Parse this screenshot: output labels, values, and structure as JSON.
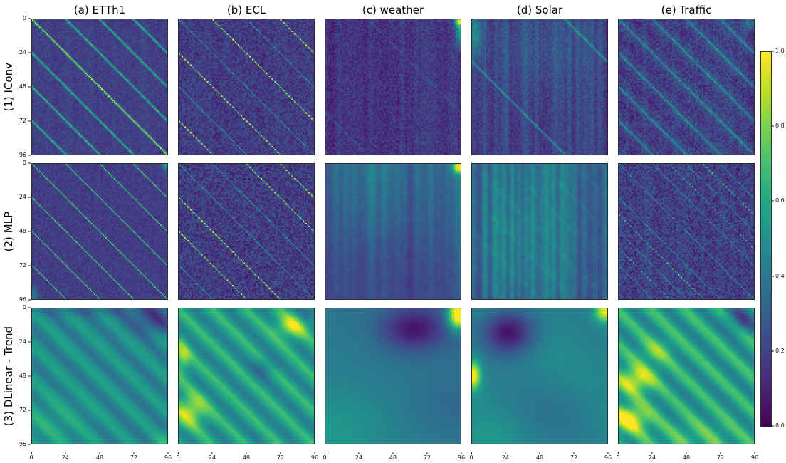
{
  "chart_data": {
    "type": "heatmap",
    "grid": {
      "rows": 3,
      "cols": 5
    },
    "col_titles": [
      "(a) ETTh1",
      "(b) ECL",
      "(c) weather",
      "(d) Solar",
      "(e) Traffic"
    ],
    "row_labels": [
      "(1) IConv",
      "(2) MLP",
      "(3) DLinear - Trend"
    ],
    "x_range": [
      0,
      96
    ],
    "y_range": [
      0,
      96
    ],
    "xticks": [
      0,
      24,
      48,
      72,
      96
    ],
    "yticks": [
      0,
      24,
      48,
      72,
      96
    ],
    "value_range": [
      0.0,
      1.0
    ],
    "colorbar": {
      "min": 0.0,
      "max": 1.0,
      "ticks": [
        "1.0",
        "0.8",
        "0.6",
        "0.4",
        "0.2",
        "0.0"
      ],
      "colormap": "viridis"
    },
    "colormap_stops": [
      [
        0.0,
        "#440154"
      ],
      [
        0.1,
        "#482475"
      ],
      [
        0.2,
        "#414487"
      ],
      [
        0.3,
        "#355f8d"
      ],
      [
        0.4,
        "#2a788e"
      ],
      [
        0.5,
        "#21918c"
      ],
      [
        0.6,
        "#22a884"
      ],
      [
        0.7,
        "#44bf70"
      ],
      [
        0.8,
        "#7ad151"
      ],
      [
        0.9,
        "#bddf26"
      ],
      [
        1.0,
        "#fde725"
      ]
    ],
    "panels": [
      {
        "dataset": "ETTh1",
        "model": "IConv",
        "seed": 11,
        "base": 0.19,
        "noise": 0.05,
        "streaks": {
          "amp": 0.04,
          "smooth": 2
        },
        "diag": [
          {
            "period": 24,
            "amp": 0.5,
            "jitter": 0.3,
            "wide": true
          },
          {
            "period": 96,
            "offset": 0,
            "amp": 0.25,
            "jitter": 0.2
          }
        ]
      },
      {
        "dataset": "ECL",
        "model": "IConv",
        "seed": 12,
        "base": 0.18,
        "noise": 0.09,
        "streaks": {
          "amp": 0.03,
          "smooth": 1
        },
        "diag": [
          {
            "period": 24,
            "amp": 0.33,
            "jitter": 0.5
          },
          {
            "period": 96,
            "offset": 72,
            "amp": 0.7,
            "jitter": 0.45,
            "dotted": true
          },
          {
            "period": 96,
            "offset": -72,
            "amp": 0.7,
            "jitter": 0.45,
            "dotted": true
          }
        ]
      },
      {
        "dataset": "weather",
        "model": "IConv",
        "seed": 13,
        "base": 0.16,
        "noise": 0.07,
        "streaks": {
          "amp": 0.05,
          "smooth": 1
        },
        "diag": [
          {
            "period": 96,
            "offset": 30,
            "amp": 0.1,
            "jitter": 0.5,
            "wide": true
          }
        ],
        "blobs": [
          {
            "x": 95,
            "y": 6,
            "sx": 2,
            "sy": 9,
            "a": 0.45
          },
          {
            "x": 94,
            "y": 1,
            "sx": 2,
            "sy": 2,
            "a": 0.5
          }
        ]
      },
      {
        "dataset": "Solar",
        "model": "IConv",
        "seed": 14,
        "base": 0.2,
        "noise": 0.06,
        "streaks": {
          "amp": 0.11,
          "smooth": 1
        },
        "diag": [
          {
            "period": 96,
            "offset": -30,
            "amp": 0.32,
            "jitter": 0.3,
            "wide": true
          }
        ],
        "blobs": [
          {
            "x": 2,
            "y": 10,
            "sx": 3,
            "sy": 12,
            "a": 0.28
          },
          {
            "x": 50,
            "y": 18,
            "sx": 30,
            "sy": 22,
            "a": 0.07
          }
        ]
      },
      {
        "dataset": "Traffic",
        "model": "IConv",
        "seed": 15,
        "base": 0.17,
        "noise": 0.09,
        "streaks": {
          "amp": 0.05,
          "smooth": 1
        },
        "bands": {
          "period": 24,
          "amp": 0.07,
          "phase": 1.5
        },
        "diag": [
          {
            "period": 24,
            "amp": 0.3,
            "jitter": 0.5,
            "wide": true
          }
        ],
        "blobs": [
          {
            "x": 92,
            "y": 3,
            "sx": 3,
            "sy": 3,
            "a": 0.25
          }
        ]
      },
      {
        "dataset": "ETTh1",
        "model": "MLP",
        "seed": 21,
        "base": 0.18,
        "noise": 0.05,
        "diag": [
          {
            "period": 24,
            "amp": 0.55,
            "jitter": 0.25
          }
        ],
        "blobs": [
          {
            "x": 95,
            "y": 1,
            "sx": 2,
            "sy": 2,
            "a": 0.4
          },
          {
            "x": 1,
            "y": 92,
            "sx": 2,
            "sy": 4,
            "a": 0.2
          }
        ]
      },
      {
        "dataset": "ECL",
        "model": "MLP",
        "seed": 22,
        "base": 0.18,
        "noise": 0.11,
        "diag": [
          {
            "period": 24,
            "amp": 0.33,
            "jitter": 0.5
          },
          {
            "period": 96,
            "offset": 72,
            "amp": 0.65,
            "jitter": 0.4,
            "dotted": true
          },
          {
            "period": 96,
            "offset": -48,
            "amp": 0.6,
            "jitter": 0.4,
            "dotted": true
          }
        ]
      },
      {
        "dataset": "weather",
        "model": "MLP",
        "seed": 23,
        "base": 0.3,
        "noise": 0.05,
        "vgrad": -0.12,
        "streaks": {
          "amp": 0.16,
          "smooth": 2,
          "topfade": 0.5
        },
        "blobs": [
          {
            "x": 94,
            "y": 2,
            "sx": 3,
            "sy": 3,
            "a": 0.6
          },
          {
            "x": 40,
            "y": 70,
            "sx": 25,
            "sy": 20,
            "a": -0.05
          }
        ],
        "blur": 1
      },
      {
        "dataset": "Solar",
        "model": "MLP",
        "seed": 24,
        "base": 0.33,
        "noise": 0.07,
        "vgrad": -0.04,
        "streaks": {
          "amp": 0.24,
          "smooth": 1
        },
        "diag": [
          {
            "period": 24,
            "amp": 0.09,
            "jitter": 0.5,
            "wide": true
          }
        ],
        "blobs": [
          {
            "x": 30,
            "y": 55,
            "sx": 25,
            "sy": 30,
            "a": 0.07
          }
        ],
        "blur": 1
      },
      {
        "dataset": "Traffic",
        "model": "MLP",
        "seed": 25,
        "base": 0.19,
        "noise": 0.11,
        "streaks": {
          "amp": 0.04,
          "smooth": 1
        },
        "diag": [
          {
            "period": 24,
            "amp": 0.28,
            "jitter": 0.5
          },
          {
            "period": 96,
            "offset": 60,
            "amp": 0.62,
            "jitter": 0.45,
            "dotted": true
          },
          {
            "period": 96,
            "offset": -60,
            "amp": 0.5,
            "jitter": 0.45,
            "dotted": true
          }
        ]
      },
      {
        "dataset": "ETTh1",
        "model": "DLinear - Trend",
        "seed": 31,
        "base": 0.38,
        "noise": 0.02,
        "bands": {
          "period": 24,
          "amp": 0.2,
          "phase": 2.0
        },
        "diag": [
          {
            "period": 24,
            "amp": -0.1,
            "jitter": 0.3
          }
        ],
        "blobs": [
          {
            "x": 86,
            "y": 8,
            "sx": 12,
            "sy": 7,
            "a": -0.26
          },
          {
            "x": 48,
            "y": 1,
            "sx": 40,
            "sy": 3,
            "a": -0.12
          },
          {
            "x": 12,
            "y": 82,
            "sx": 20,
            "sy": 14,
            "a": 0.1
          },
          {
            "x": 94,
            "y": 94,
            "sx": 6,
            "sy": 5,
            "a": 0.12
          }
        ],
        "blur": 2
      },
      {
        "dataset": "ECL",
        "model": "DLinear - Trend",
        "seed": 32,
        "base": 0.42,
        "noise": 0.03,
        "bands": {
          "period": 24,
          "amp": 0.24,
          "phase": 2.0
        },
        "diag": [
          {
            "period": 24,
            "amp": 0.14,
            "jitter": 0.3
          }
        ],
        "blobs": [
          {
            "x": 80,
            "y": 12,
            "sx": 8,
            "sy": 6,
            "a": 0.38
          },
          {
            "x": 2,
            "y": 34,
            "sx": 4,
            "sy": 8,
            "a": 0.3
          },
          {
            "x": 8,
            "y": 72,
            "sx": 8,
            "sy": 8,
            "a": 0.38
          },
          {
            "x": 60,
            "y": 42,
            "sx": 6,
            "sy": 5,
            "a": -0.15
          },
          {
            "x": 92,
            "y": 2,
            "sx": 5,
            "sy": 4,
            "a": -0.2
          }
        ],
        "blur": 1
      },
      {
        "dataset": "weather",
        "model": "DLinear - Trend",
        "seed": 33,
        "base": 0.4,
        "noise": 0.015,
        "vgrad": 0.06,
        "hgrad": -0.05,
        "blobs": [
          {
            "x": 62,
            "y": 14,
            "sx": 16,
            "sy": 11,
            "a": -0.32
          },
          {
            "x": 94,
            "y": 4,
            "sx": 5,
            "sy": 7,
            "a": 0.85
          },
          {
            "x": 8,
            "y": 85,
            "sx": 25,
            "sy": 20,
            "a": 0.08
          },
          {
            "x": 88,
            "y": 70,
            "sx": 20,
            "sy": 15,
            "a": -0.05
          }
        ],
        "blur": 3
      },
      {
        "dataset": "Solar",
        "model": "DLinear - Trend",
        "seed": 34,
        "base": 0.43,
        "noise": 0.015,
        "bands": {
          "period": 96,
          "amp": 0.05,
          "phase": 0
        },
        "blobs": [
          {
            "x": 26,
            "y": 16,
            "sx": 13,
            "sy": 11,
            "a": -0.42
          },
          {
            "x": 1,
            "y": 47,
            "sx": 3,
            "sy": 7,
            "a": 0.6
          },
          {
            "x": 94,
            "y": 2,
            "sx": 5,
            "sy": 5,
            "a": 0.55
          },
          {
            "x": 62,
            "y": 72,
            "sx": 28,
            "sy": 18,
            "a": -0.05
          },
          {
            "x": 10,
            "y": 90,
            "sx": 15,
            "sy": 10,
            "a": 0.06
          }
        ],
        "blur": 3
      },
      {
        "dataset": "Traffic",
        "model": "DLinear - Trend",
        "seed": 35,
        "base": 0.42,
        "noise": 0.03,
        "bands": {
          "period": 24,
          "amp": 0.28,
          "phase": 2.2
        },
        "diag": [
          {
            "period": 24,
            "amp": 0.12,
            "jitter": 0.3
          }
        ],
        "blobs": [
          {
            "x": 12,
            "y": 50,
            "sx": 9,
            "sy": 7,
            "a": 0.42
          },
          {
            "x": 8,
            "y": 78,
            "sx": 9,
            "sy": 7,
            "a": 0.46
          },
          {
            "x": 26,
            "y": 30,
            "sx": 8,
            "sy": 6,
            "a": 0.2
          },
          {
            "x": 88,
            "y": 6,
            "sx": 9,
            "sy": 7,
            "a": -0.28
          },
          {
            "x": 55,
            "y": 90,
            "sx": 20,
            "sy": 8,
            "a": 0.12
          }
        ],
        "blur": 1
      }
    ]
  }
}
